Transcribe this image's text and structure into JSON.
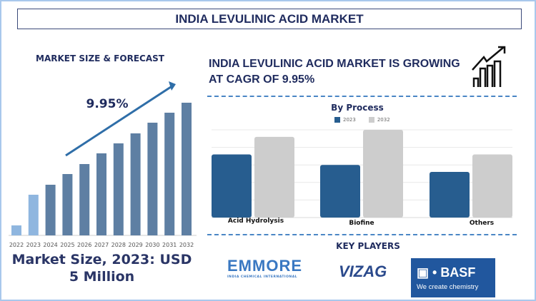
{
  "header": {
    "title": "INDIA LEVULINIC ACID MARKET"
  },
  "left": {
    "heading": "MARKET SIZE & FORECAST",
    "cagr_label": "9.95%",
    "market_size": "Market Size, 2023: USD 5 Million"
  },
  "right": {
    "headline": "INDIA LEVULINIC ACID MARKET IS GROWING AT CAGR OF 9.95%",
    "icon": "growth-chart-icon"
  },
  "key_players": {
    "heading": "KEY PLAYERS",
    "logos": [
      {
        "name": "EMMORE",
        "tagline": "INDIA CHEMICAL INTERNATIONAL"
      },
      {
        "name": "VIZAG"
      },
      {
        "name": "BASF",
        "tagline": "We create chemistry"
      }
    ]
  },
  "chart_data": [
    {
      "type": "bar",
      "title": "",
      "categories": [
        "2022",
        "2023",
        "2024",
        "2025",
        "2026",
        "2027",
        "2028",
        "2029",
        "2030",
        "2031",
        "2032"
      ],
      "values": [
        14,
        57,
        71,
        86,
        100,
        115,
        129,
        143,
        158,
        172,
        186
      ],
      "colors": {
        "historic": "#8fb6df",
        "forecast": "#5e7fa3"
      },
      "annotation": "9.95%",
      "grid": false
    },
    {
      "type": "bar",
      "title": "By Process",
      "categories": [
        "Acid Hydrolysis",
        "Biofine",
        "Others"
      ],
      "series": [
        {
          "name": "2023",
          "values": [
            3.6,
            3.0,
            2.6
          ],
          "color": "#275d8f"
        },
        {
          "name": "2032",
          "values": [
            4.6,
            5.0,
            3.6
          ],
          "color": "#cdcdcd"
        }
      ],
      "ylim": [
        0,
        5
      ],
      "grid": true,
      "legend": "top"
    }
  ]
}
